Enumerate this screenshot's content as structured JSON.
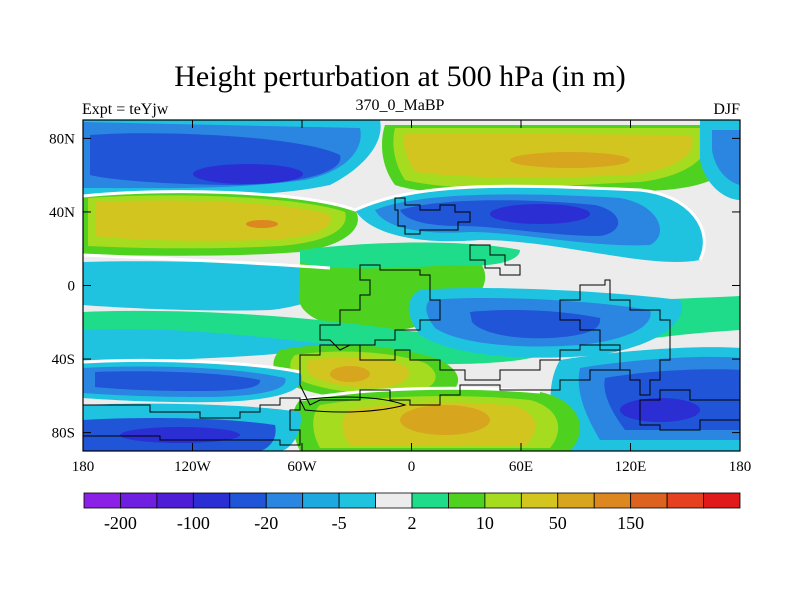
{
  "header": {
    "title": "Height perturbation at 500 hPa (in m)",
    "left_label": "Expt = teYjw",
    "center_label": "370_0_MaBP",
    "right_label": "DJF"
  },
  "chart_data": {
    "type": "heatmap",
    "title": "Height perturbation at 500 hPa (in m)",
    "xlabel": "",
    "ylabel": "",
    "xlim": [
      -180,
      180
    ],
    "ylim": [
      -90,
      90
    ],
    "x_ticks": [
      {
        "value": -180,
        "label": "180"
      },
      {
        "value": -120,
        "label": "120W"
      },
      {
        "value": -60,
        "label": "60W"
      },
      {
        "value": 0,
        "label": "0"
      },
      {
        "value": 60,
        "label": "60E"
      },
      {
        "value": 120,
        "label": "120E"
      },
      {
        "value": 180,
        "label": "180"
      }
    ],
    "y_ticks": [
      {
        "value": 80,
        "label": "80N"
      },
      {
        "value": 40,
        "label": "40N"
      },
      {
        "value": 0,
        "label": "0"
      },
      {
        "value": -40,
        "label": "40S"
      },
      {
        "value": -80,
        "label": "80S"
      }
    ],
    "colorbar": {
      "colors": [
        "#8b21e6",
        "#6e1fe0",
        "#4e1ed6",
        "#2a2ed3",
        "#1f55d6",
        "#2a86e0",
        "#1ea8e0",
        "#1fc3e0",
        "#ececec",
        "#1fdc8a",
        "#4ed21f",
        "#a6dc1f",
        "#d2c51f",
        "#d8a51f",
        "#dc871f",
        "#dc621f",
        "#e5401f",
        "#e01a1a"
      ],
      "labels": [
        {
          "label": "-200",
          "boundary": 1
        },
        {
          "label": "-100",
          "boundary": 3
        },
        {
          "label": "-20",
          "boundary": 5
        },
        {
          "label": "-5",
          "boundary": 7
        },
        {
          "label": "2",
          "boundary": 9
        },
        {
          "label": "10",
          "boundary": 11
        },
        {
          "label": "50",
          "boundary": 13
        },
        {
          "label": "150",
          "boundary": 15
        }
      ]
    }
  }
}
